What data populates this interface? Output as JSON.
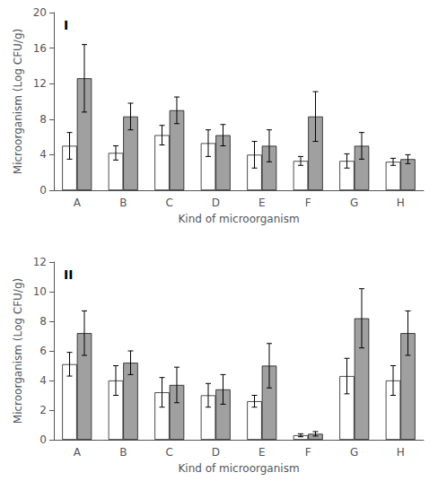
{
  "chart_data": [
    {
      "type": "bar",
      "title": "I",
      "categories": [
        "A",
        "B",
        "C",
        "D",
        "E",
        "F",
        "G",
        "H"
      ],
      "series": [
        {
          "color": "#ffffff",
          "values": [
            5.0,
            4.2,
            6.2,
            5.3,
            4.0,
            3.3,
            3.3,
            3.2
          ],
          "errors": [
            1.5,
            0.8,
            1.1,
            1.5,
            1.5,
            0.5,
            0.8,
            0.4
          ]
        },
        {
          "color": "#a0a0a0",
          "values": [
            12.6,
            8.3,
            9.0,
            6.2,
            5.0,
            8.3,
            5.0,
            3.5
          ],
          "errors": [
            3.8,
            1.5,
            1.5,
            1.2,
            1.8,
            2.8,
            1.5,
            0.5
          ]
        }
      ],
      "ylim": [
        0,
        20
      ],
      "yticks": [
        0,
        4,
        8,
        12,
        16,
        20
      ],
      "ylabel": "Microorganism (Log CFU/g)",
      "xlabel": "Kind of microorganism",
      "grid": false
    },
    {
      "type": "bar",
      "title": "II",
      "categories": [
        "A",
        "B",
        "C",
        "D",
        "E",
        "F",
        "G",
        "H"
      ],
      "series": [
        {
          "color": "#ffffff",
          "values": [
            5.1,
            4.0,
            3.2,
            3.0,
            2.6,
            0.3,
            4.3,
            4.0
          ],
          "errors": [
            0.8,
            1.0,
            1.0,
            0.8,
            0.4,
            0.1,
            1.2,
            1.0
          ]
        },
        {
          "color": "#a0a0a0",
          "values": [
            7.2,
            5.2,
            3.7,
            3.4,
            5.0,
            0.4,
            8.2,
            7.2
          ],
          "errors": [
            1.5,
            0.8,
            1.2,
            1.0,
            1.5,
            0.15,
            2.0,
            1.5
          ]
        }
      ],
      "ylim": [
        0,
        12
      ],
      "yticks": [
        0,
        2,
        4,
        6,
        8,
        10,
        12
      ],
      "ylabel": "Microorganism (Log CFU/g)",
      "xlabel": "Kind of microorganism",
      "grid": false
    }
  ]
}
